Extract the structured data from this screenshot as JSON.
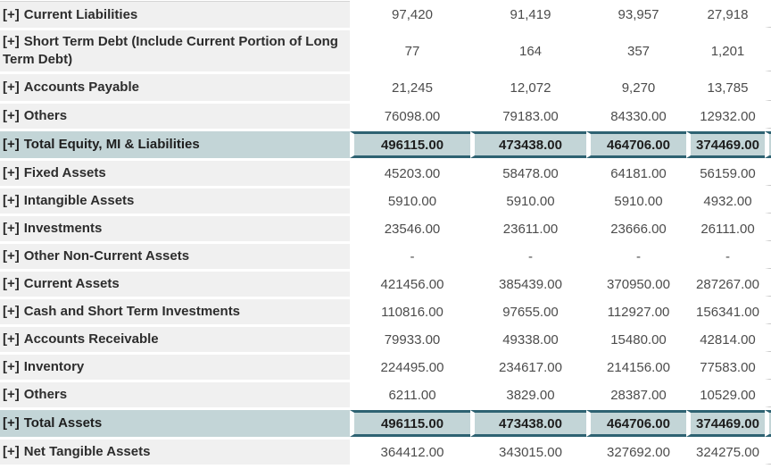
{
  "table": {
    "expander": "[+]",
    "rows": [
      {
        "label": "Current Liabilities",
        "values": [
          "97,420",
          "91,419",
          "93,957",
          "27,918"
        ],
        "highlight": false,
        "tall": true
      },
      {
        "label": "Short Term Debt (Include Current Portion of Long Term Debt)",
        "values": [
          "77",
          "164",
          "357",
          "1,201"
        ],
        "highlight": false,
        "tall": true
      },
      {
        "label": "Accounts Payable",
        "values": [
          "21,245",
          "12,072",
          "9,270",
          "13,785"
        ],
        "highlight": false,
        "tall": true
      },
      {
        "label": "Others",
        "values": [
          "76098.00",
          "79183.00",
          "84330.00",
          "12932.00"
        ],
        "highlight": false,
        "tall": false
      },
      {
        "label": "Total Equity, MI & Liabilities",
        "values": [
          "496115.00",
          "473438.00",
          "464706.00",
          "374469.00"
        ],
        "highlight": true,
        "tall": false
      },
      {
        "label": "Fixed Assets",
        "values": [
          "45203.00",
          "58478.00",
          "64181.00",
          "56159.00"
        ],
        "highlight": false,
        "tall": false
      },
      {
        "label": "Intangible Assets",
        "values": [
          "5910.00",
          "5910.00",
          "5910.00",
          "4932.00"
        ],
        "highlight": false,
        "tall": false
      },
      {
        "label": "Investments",
        "values": [
          "23546.00",
          "23611.00",
          "23666.00",
          "26111.00"
        ],
        "highlight": false,
        "tall": false
      },
      {
        "label": "Other Non-Current Assets",
        "values": [
          "-",
          "-",
          "-",
          "-"
        ],
        "highlight": false,
        "tall": false
      },
      {
        "label": "Current Assets",
        "values": [
          "421456.00",
          "385439.00",
          "370950.00",
          "287267.00"
        ],
        "highlight": false,
        "tall": false
      },
      {
        "label": "Cash and Short Term Investments",
        "values": [
          "110816.00",
          "97655.00",
          "112927.00",
          "156341.00"
        ],
        "highlight": false,
        "tall": false
      },
      {
        "label": "Accounts Receivable",
        "values": [
          "79933.00",
          "49338.00",
          "15480.00",
          "42814.00"
        ],
        "highlight": false,
        "tall": false
      },
      {
        "label": "Inventory",
        "values": [
          "224495.00",
          "234617.00",
          "214156.00",
          "77583.00"
        ],
        "highlight": false,
        "tall": false
      },
      {
        "label": "Others",
        "values": [
          "6211.00",
          "3829.00",
          "28387.00",
          "10529.00"
        ],
        "highlight": false,
        "tall": false
      },
      {
        "label": "Total Assets",
        "values": [
          "496115.00",
          "473438.00",
          "464706.00",
          "374469.00"
        ],
        "highlight": true,
        "tall": false
      },
      {
        "label": "Net Tangible Assets",
        "values": [
          "364412.00",
          "343015.00",
          "327692.00",
          "324275.00"
        ],
        "highlight": false,
        "tall": false
      }
    ]
  },
  "colors": {
    "highlight_bg": "#c3d5d7",
    "highlight_border": "#2e6272",
    "label_bg": "#f0f0f0",
    "label_text": "#2d2d2d",
    "value_text": "#4c4c4c",
    "highlight_text": "#1e1e1e",
    "tick": "#cbcbcb"
  }
}
